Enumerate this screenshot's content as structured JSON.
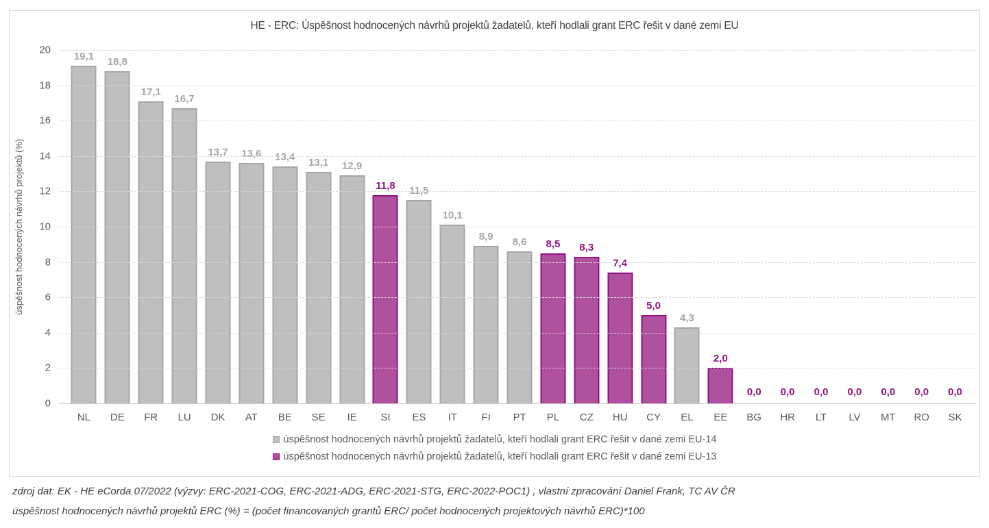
{
  "title": "HE - ERC: Úspěšnost hodnocených návrhů projektů žadatelů, kteří hodlali grant ERC řešit v dané zemi EU",
  "y_axis_title": "úspěšnost hodnocených návrhů projektů (%)",
  "legend": [
    {
      "label": "úspěšnost hodnocených návrhů projektů žadatelů, kteří hodlali grant ERC řešit v dané zemi EU-14",
      "group": "EU-14"
    },
    {
      "label": "úspěšnost hodnocených návrhů projektů žadatelů, kteří hodlali grant ERC řešit v dané zemi EU-13",
      "group": "EU-13"
    }
  ],
  "colors": {
    "EU-14": {
      "fill": "#bfbfbf",
      "border": "#a6a6a6",
      "label": "#a6a6a6"
    },
    "EU-13": {
      "fill": "#b0519f",
      "border": "#8e1380",
      "label": "#8e1380"
    }
  },
  "footer": {
    "line1": "zdroj dat: EK - HE eCorda 07/2022 (výzvy: ERC-2021-COG, ERC-2021-ADG, ERC-2021-STG, ERC-2022-POC1) , vlastní zpracování Daniel Frank, TC AV ČR",
    "line2": "úspěšnost hodnocených návrhů projektů ERC (%) = (počet financovaných grantů ERC/ počet hodnocených projektových návrhů ERC)*100"
  },
  "chart_data": {
    "type": "bar",
    "title": "HE - ERC: Úspěšnost hodnocených návrhů projektů žadatelů, kteří hodlali grant ERC řešit v dané zemi EU",
    "xlabel": "",
    "ylabel": "úspěšnost hodnocených návrhů projektů (%)",
    "ylim": [
      0,
      20
    ],
    "yticks": [
      0,
      2,
      4,
      6,
      8,
      10,
      12,
      14,
      16,
      18,
      20
    ],
    "grid": "dashed-horizontal",
    "legend_position": "bottom",
    "decimal_separator": ",",
    "categories": [
      "NL",
      "DE",
      "FR",
      "LU",
      "DK",
      "AT",
      "BE",
      "SE",
      "IE",
      "SI",
      "ES",
      "IT",
      "FI",
      "PT",
      "PL",
      "CZ",
      "HU",
      "CY",
      "EL",
      "EE",
      "BG",
      "HR",
      "LT",
      "LV",
      "MT",
      "RO",
      "SK"
    ],
    "values": [
      19.1,
      18.8,
      17.1,
      16.7,
      13.7,
      13.6,
      13.4,
      13.1,
      12.9,
      11.8,
      11.5,
      10.1,
      8.9,
      8.6,
      8.5,
      8.3,
      7.4,
      5.0,
      4.3,
      2.0,
      0.0,
      0.0,
      0.0,
      0.0,
      0.0,
      0.0,
      0.0
    ],
    "groups": [
      "EU-14",
      "EU-14",
      "EU-14",
      "EU-14",
      "EU-14",
      "EU-14",
      "EU-14",
      "EU-14",
      "EU-14",
      "EU-13",
      "EU-14",
      "EU-14",
      "EU-14",
      "EU-14",
      "EU-13",
      "EU-13",
      "EU-13",
      "EU-13",
      "EU-14",
      "EU-13",
      "EU-13",
      "EU-13",
      "EU-13",
      "EU-13",
      "EU-13",
      "EU-13",
      "EU-13"
    ]
  }
}
